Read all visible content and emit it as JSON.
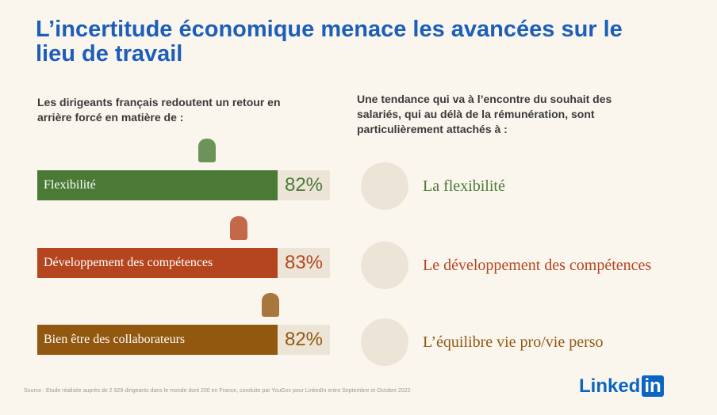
{
  "header": {
    "title": "L’incertitude économique menace les avancées sur le lieu de travail"
  },
  "left": {
    "intro": "Les dirigeants français redoutent un retour en arrière forcé en matière de :",
    "items": [
      {
        "label": "Flexibilité",
        "value": "82%",
        "color": "#4a7a35"
      },
      {
        "label": "Développement des compétences",
        "value": "83%",
        "color": "#b5451f"
      },
      {
        "label": "Bien être des collaborateurs",
        "value": "82%",
        "color": "#93580f"
      }
    ]
  },
  "right": {
    "intro": "Une tendance qui va à l’encontre du souhait des salariés, qui au délà de la rémunération, sont particulièrement attachés à :",
    "items": [
      "La flexibilité",
      "Le développement des compétences",
      "L’équilibre vie pro/vie perso"
    ]
  },
  "footer": {
    "source": "Source : Etude réalisée auprès de 2 929 dirigeants dans le monde dont 200 en France, conduite par YouGov pour LinkedIn entre Septembre et Octobre 2022",
    "logo": [
      "Linked",
      "in"
    ]
  }
}
